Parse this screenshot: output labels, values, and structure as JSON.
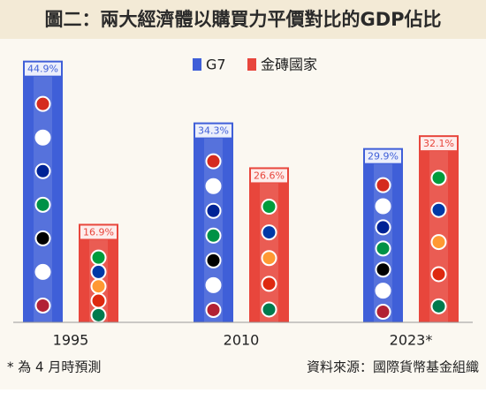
{
  "chart_data": {
    "type": "bar",
    "title": "圖二：兩大經濟體以購買力平價對比的GDP佔比",
    "categories": [
      "1995",
      "2010",
      "2023*"
    ],
    "series": [
      {
        "name": "G7",
        "color": "#3f5fd8",
        "values": [
          44.9,
          34.3,
          29.9
        ],
        "value_labels": [
          "44.9%",
          "34.3%",
          "29.9%"
        ]
      },
      {
        "name": "金磚國家",
        "color": "#e8463c",
        "values": [
          16.9,
          26.6,
          32.1
        ],
        "value_labels": [
          "16.9%",
          "26.6%",
          "32.1%"
        ]
      }
    ],
    "notes": [
      "* 為 4 月時預測",
      "資料來源：國際貨幣基金組織"
    ]
  }
}
